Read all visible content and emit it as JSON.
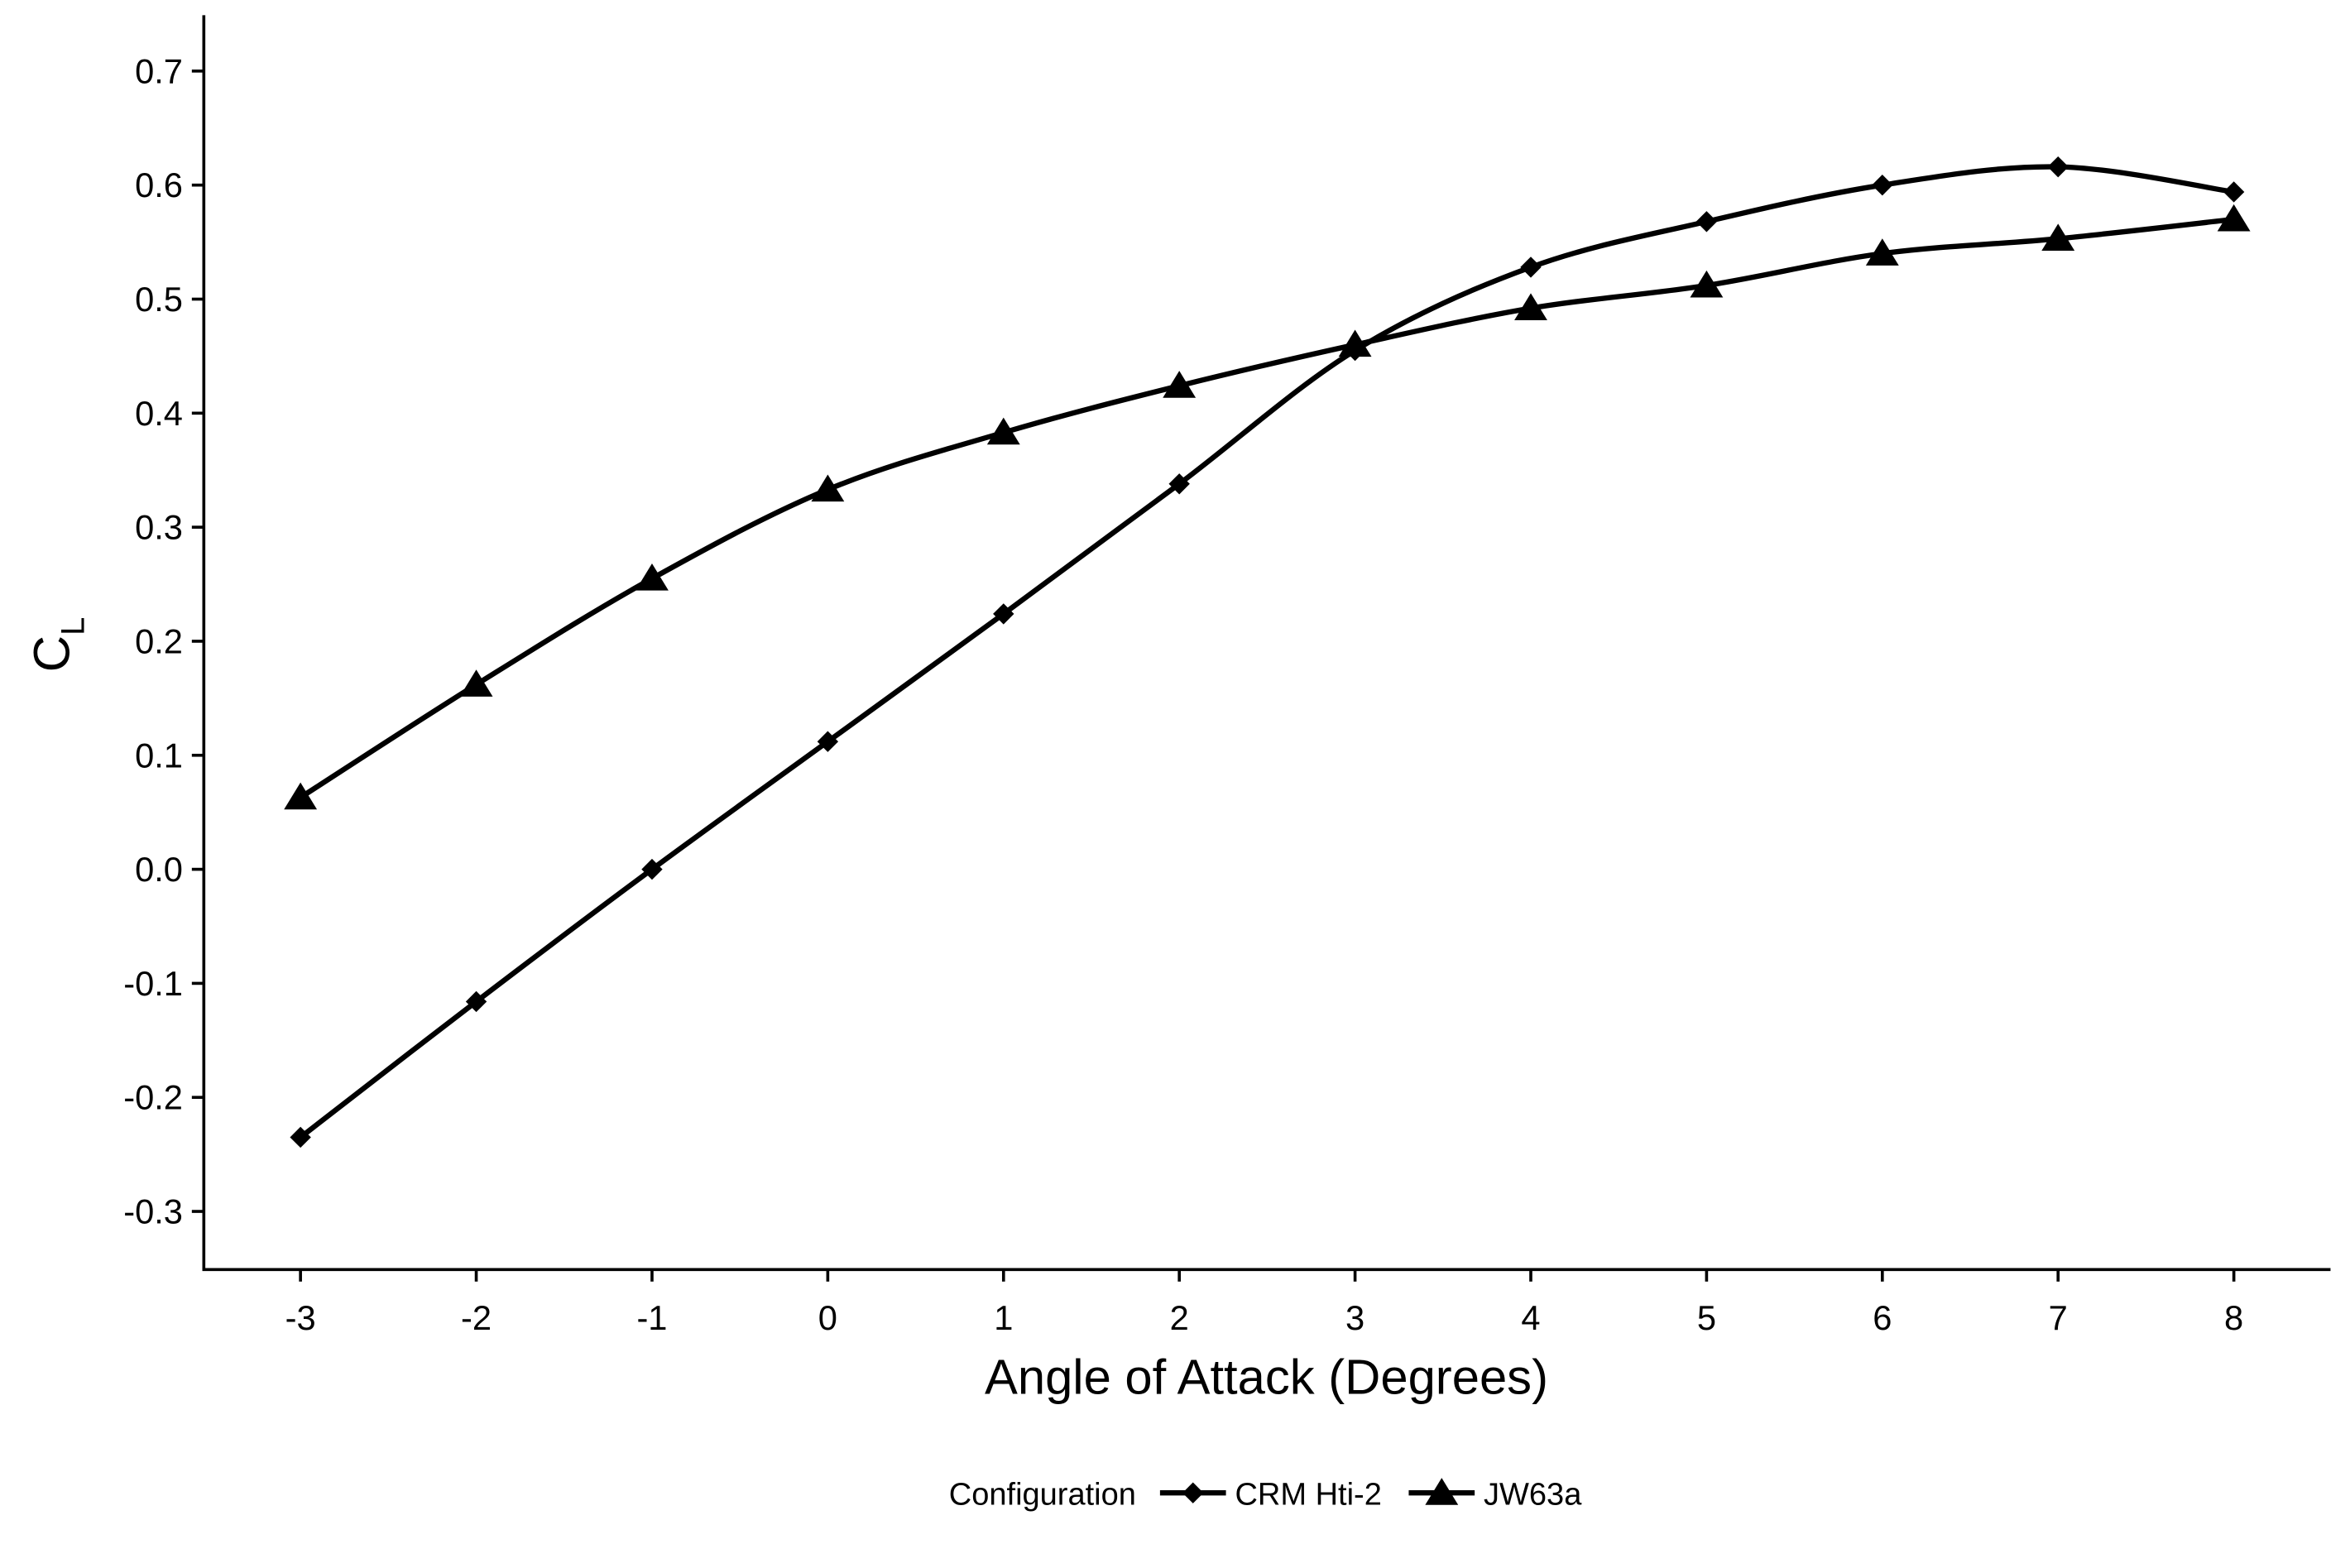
{
  "chart_data": {
    "type": "line",
    "x_label": "Angle of Attack (Degrees)",
    "y_label": {
      "text": "C",
      "subscript": "L"
    },
    "legend_title": "Configuration",
    "x": [
      -3,
      -2,
      -1,
      0,
      1,
      2,
      3,
      4,
      5,
      6,
      7,
      8
    ],
    "series": [
      {
        "name": "CRM Hti-2",
        "color": "#000000",
        "marker": "diamond",
        "values": [
          -0.235,
          -0.116,
          0.0,
          0.112,
          0.224,
          0.338,
          0.455,
          0.528,
          0.568,
          0.6,
          0.616,
          0.594
        ]
      },
      {
        "name": "JW63a",
        "color": "#000000",
        "marker": "triangle",
        "values": [
          0.063,
          0.162,
          0.255,
          0.333,
          0.383,
          0.424,
          0.46,
          0.492,
          0.512,
          0.54,
          0.553,
          0.57
        ]
      }
    ],
    "xlim": [
      -3.55,
      8.55
    ],
    "xticks": [
      -3,
      -2,
      -1,
      0,
      1,
      2,
      3,
      4,
      5,
      6,
      7,
      8
    ],
    "ylim": [
      -0.351,
      0.749
    ],
    "yticks": [
      0.7,
      0.6,
      0.5,
      0.4,
      0.3,
      0.2,
      0.1,
      {
        "value": 0,
        "label": "0.0"
      },
      -0.1,
      -0.2,
      -0.3
    ],
    "smooth": true,
    "legend_position": "bottom"
  }
}
